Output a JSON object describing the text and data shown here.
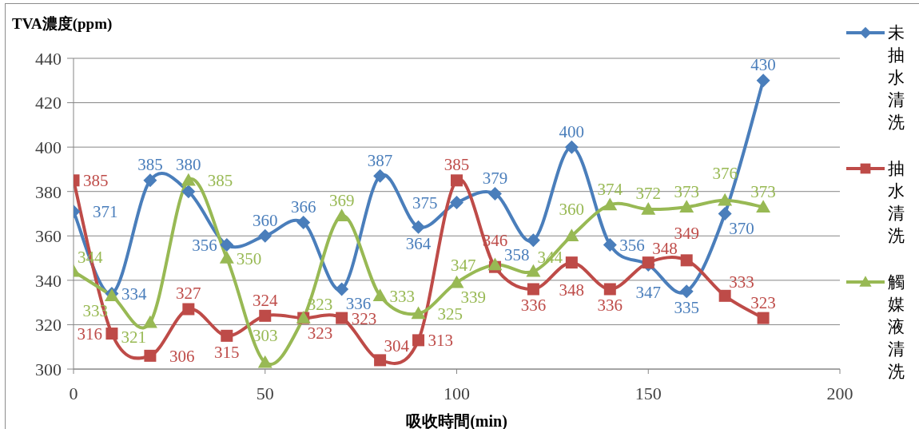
{
  "chart_data": {
    "type": "line",
    "xlabel": "吸收時間(min)",
    "ylabel": "TVA濃度(ppm)",
    "x": [
      0,
      10,
      20,
      30,
      40,
      50,
      60,
      70,
      80,
      90,
      100,
      110,
      120,
      130,
      140,
      150,
      160,
      170,
      180
    ],
    "series": [
      {
        "name": "未抽水清洗",
        "color": "#4a7ebb",
        "marker": "diamond",
        "values": [
          371,
          334,
          385,
          380,
          356,
          360,
          366,
          336,
          387,
          364,
          375,
          379,
          358,
          400,
          356,
          347,
          335,
          370,
          430
        ]
      },
      {
        "name": "抽水清洗",
        "color": "#be4b48",
        "marker": "square",
        "values": [
          385,
          316,
          306,
          327,
          315,
          324,
          323,
          323,
          304,
          313,
          385,
          346,
          336,
          348,
          336,
          348,
          349,
          333,
          323
        ]
      },
      {
        "name": "觸媒液清洗",
        "color": "#98b954",
        "marker": "triangle",
        "values": [
          344,
          333,
          321,
          385,
          350,
          303,
          323,
          369,
          333,
          325,
          339,
          347,
          344,
          360,
          374,
          372,
          373,
          376,
          373
        ]
      }
    ],
    "xlim": [
      0,
      200
    ],
    "xticks": [
      0,
      50,
      100,
      150,
      200
    ],
    "ylim": [
      300,
      440
    ],
    "yticks": [
      300,
      320,
      340,
      360,
      380,
      400,
      420,
      440
    ],
    "grid": "y",
    "legend": "right",
    "data_labels": true,
    "line_style": "solid"
  }
}
